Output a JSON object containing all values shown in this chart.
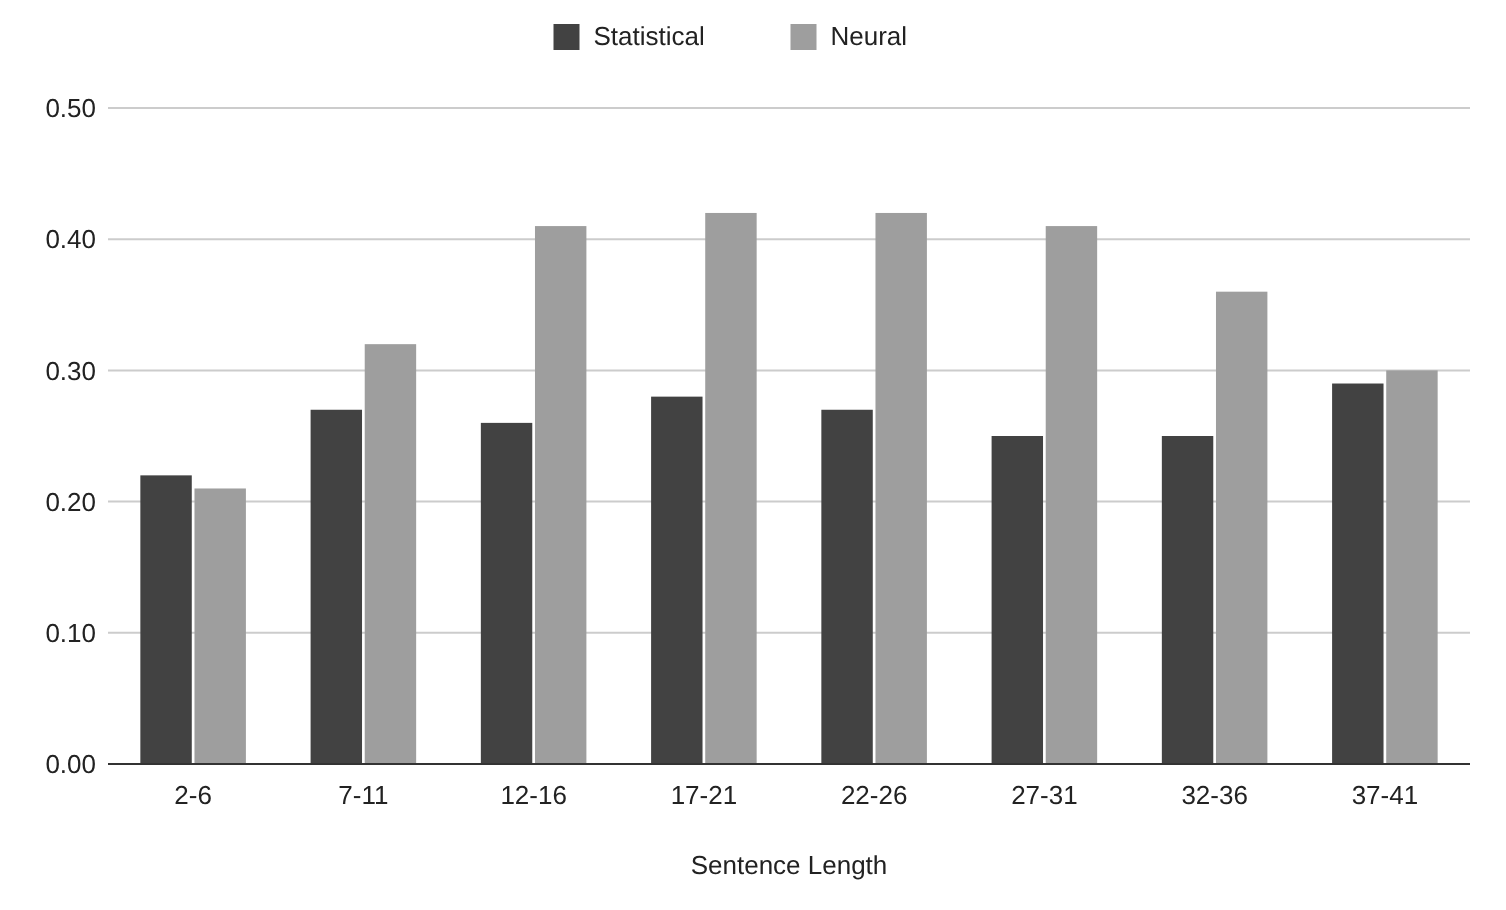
{
  "chart_data": {
    "type": "bar",
    "xlabel": "Sentence Length",
    "categories": [
      "2-6",
      "7-11",
      "12-16",
      "17-21",
      "22-26",
      "27-31",
      "32-36",
      "37-41"
    ],
    "series": [
      {
        "name": "Statistical",
        "color": "#424242",
        "values": [
          0.22,
          0.27,
          0.26,
          0.28,
          0.27,
          0.25,
          0.25,
          0.29
        ]
      },
      {
        "name": "Neural",
        "color": "#9e9e9e",
        "values": [
          0.21,
          0.32,
          0.41,
          0.42,
          0.42,
          0.41,
          0.36,
          0.3
        ]
      }
    ],
    "ylim": [
      0,
      0.5
    ],
    "yticks": [
      {
        "value": 0,
        "label": "0.00"
      },
      {
        "value": 0.1,
        "label": "0.10"
      },
      {
        "value": 0.2,
        "label": "0.20"
      },
      {
        "value": 0.3,
        "label": "0.30"
      },
      {
        "value": 0.4,
        "label": "0.40"
      },
      {
        "value": 0.5,
        "label": "0.50"
      }
    ],
    "grid": "y",
    "legend": "top"
  }
}
